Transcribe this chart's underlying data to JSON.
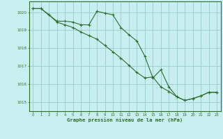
{
  "title": "Graphe pression niveau de la mer (hPa)",
  "background_color": "#c8eef0",
  "grid_color": "#99cccc",
  "line_color": "#2d6e2d",
  "xlim": [
    -0.5,
    23.5
  ],
  "ylim": [
    1014.5,
    1020.6
  ],
  "yticks": [
    1015,
    1016,
    1017,
    1018,
    1019,
    1020
  ],
  "xticks": [
    0,
    1,
    2,
    3,
    4,
    5,
    6,
    7,
    8,
    9,
    10,
    11,
    12,
    13,
    14,
    15,
    16,
    17,
    18,
    19,
    20,
    21,
    22,
    23
  ],
  "series1_x": [
    0,
    1,
    2,
    3,
    4,
    5,
    6,
    7,
    8,
    9,
    10,
    11,
    12,
    13,
    14,
    15,
    16,
    17,
    18,
    19,
    20,
    21,
    22,
    23
  ],
  "series1_y": [
    1020.2,
    1020.2,
    1019.85,
    1019.5,
    1019.5,
    1019.45,
    1019.3,
    1019.3,
    1020.05,
    1019.95,
    1019.85,
    1019.15,
    1018.75,
    1018.4,
    1017.55,
    1016.35,
    1016.8,
    1015.85,
    1015.3,
    1015.1,
    1015.2,
    1015.35,
    1015.55,
    1015.55
  ],
  "series2_x": [
    0,
    1,
    2,
    3,
    4,
    5,
    6,
    7,
    8,
    9,
    10,
    11,
    12,
    13,
    14,
    15,
    16,
    17,
    18,
    19,
    20,
    21,
    22,
    23
  ],
  "series2_y": [
    1020.2,
    1020.2,
    1019.85,
    1019.45,
    1019.3,
    1019.15,
    1018.9,
    1018.7,
    1018.5,
    1018.15,
    1017.8,
    1017.45,
    1017.05,
    1016.65,
    1016.35,
    1016.4,
    1015.85,
    1015.6,
    1015.3,
    1015.1,
    1015.2,
    1015.35,
    1015.55,
    1015.55
  ]
}
